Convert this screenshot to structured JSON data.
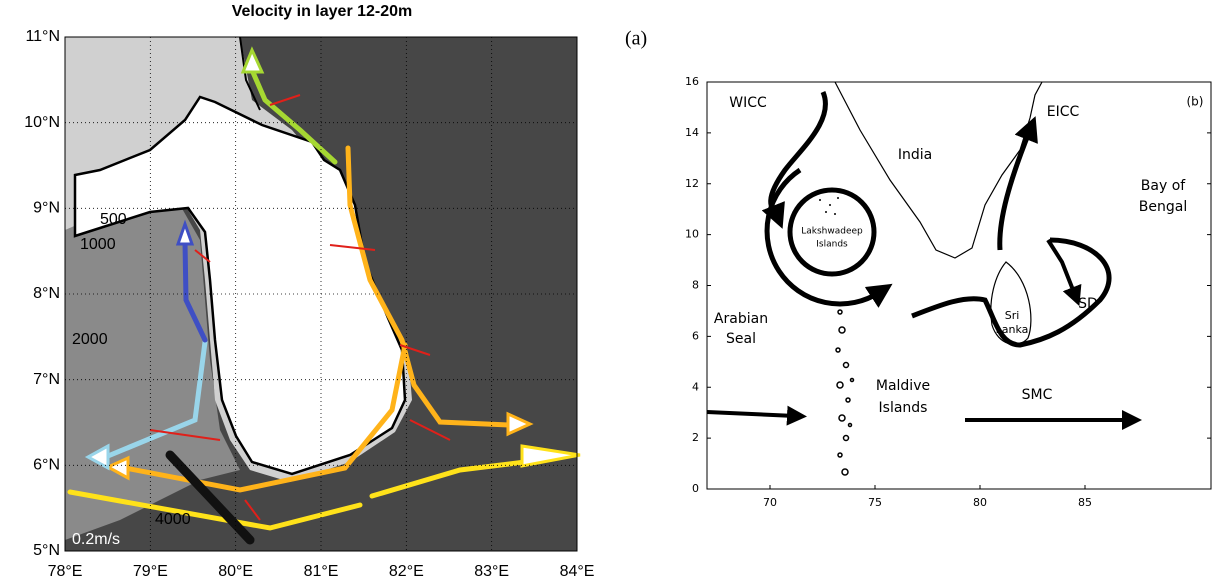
{
  "panel_a": {
    "label": "(a)",
    "title": "Velocity in layer 12-20m",
    "lonlim": [
      78,
      84
    ],
    "latlim": [
      5,
      11
    ],
    "lon_ticks": [
      {
        "value": 78,
        "label": "78°E"
      },
      {
        "value": 79,
        "label": "79°E"
      },
      {
        "value": 80,
        "label": "80°E"
      },
      {
        "value": 81,
        "label": "81°E"
      },
      {
        "value": 82,
        "label": "82°E"
      },
      {
        "value": 83,
        "label": "83°E"
      },
      {
        "value": 84,
        "label": "84°E"
      }
    ],
    "lat_ticks": [
      {
        "value": 5,
        "label": "5°N"
      },
      {
        "value": 6,
        "label": "6°N"
      },
      {
        "value": 7,
        "label": "7°N"
      },
      {
        "value": 8,
        "label": "8°N"
      },
      {
        "value": 9,
        "label": "9°N"
      },
      {
        "value": 10,
        "label": "10°N"
      },
      {
        "value": 11,
        "label": "11°N"
      }
    ],
    "contour_labels": [
      500,
      1000,
      2000,
      4000
    ],
    "scale_label": "0.2m/s"
  },
  "panel_b": {
    "label": "(b)",
    "xlim": [
      67,
      91
    ],
    "ylim": [
      0,
      16
    ],
    "xticks": [
      70,
      75,
      80,
      85
    ],
    "yticks": [
      0,
      2,
      4,
      6,
      8,
      10,
      12,
      14,
      16
    ],
    "places": {
      "wicc": "WICC",
      "india": "India",
      "eicc": "EICC",
      "bay": [
        "Bay of",
        "Bengal"
      ],
      "lakshwadeep": [
        "Lakshwadeep",
        "Islands"
      ],
      "sd": "SD",
      "sri_lanka": [
        "Sri",
        "Lanka"
      ],
      "arabian": [
        "Arabian",
        "Seal"
      ],
      "maldive": [
        "Maldive",
        "Islands"
      ],
      "smc": "SMC"
    }
  }
}
